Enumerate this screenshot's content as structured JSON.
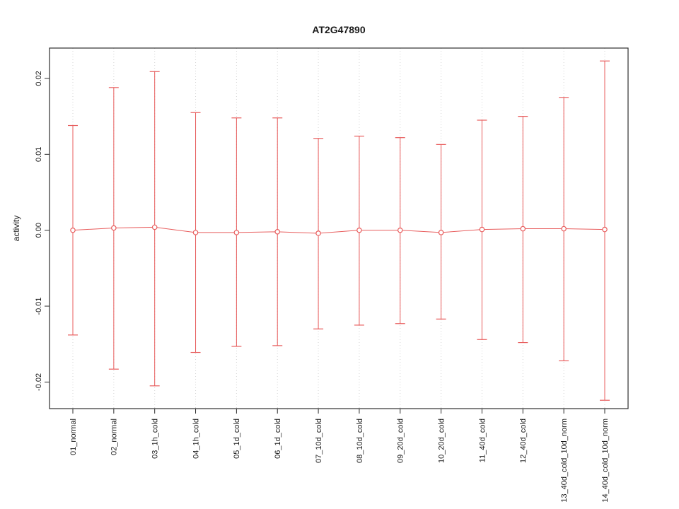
{
  "chart_data": {
    "type": "scatter",
    "subtype": "errorbar",
    "title": "AT2G47890",
    "xlabel": "",
    "ylabel": "activity",
    "ylim": [
      -0.0235,
      0.024
    ],
    "yticks": [
      -0.02,
      -0.01,
      0,
      0.01,
      0.02
    ],
    "ytick_labels": [
      "-0.02",
      "-0.01",
      "0.00",
      "0.01",
      "0.02"
    ],
    "grid": "vertical-dotted",
    "legend": "none",
    "categories": [
      "01_normal",
      "02_normal",
      "03_1h_cold",
      "04_1h_cold",
      "05_1d_cold",
      "06_1d_cold",
      "07_10d_cold",
      "08_10d_cold",
      "09_20d_cold",
      "10_20d_cold",
      "11_40d_cold",
      "12_40d_cold",
      "13_40d_cold_10d_norm",
      "14_40d_cold_10d_norm"
    ],
    "series": [
      {
        "name": "activity",
        "center": [
          0.0,
          0.0003,
          0.0004,
          -0.0003,
          -0.0003,
          -0.0002,
          -0.0004,
          0.0,
          0.0,
          -0.0003,
          0.0001,
          0.0002,
          0.0002,
          0.0001
        ],
        "upper": [
          0.0138,
          0.0188,
          0.0209,
          0.0155,
          0.0148,
          0.0148,
          0.0121,
          0.0124,
          0.0122,
          0.0113,
          0.0145,
          0.015,
          0.0175,
          0.0223
        ],
        "lower": [
          -0.0138,
          -0.0183,
          -0.0205,
          -0.0161,
          -0.0153,
          -0.0152,
          -0.013,
          -0.0125,
          -0.0123,
          -0.0117,
          -0.0144,
          -0.0148,
          -0.0172,
          -0.0224
        ]
      }
    ],
    "colors": {
      "errorbar": "#e85d5d",
      "grid": "#d4d4d4",
      "axis": "#2e2e2e",
      "text": "#1a1a1a",
      "background": "#ffffff",
      "point_fill": "#ffffff"
    }
  }
}
